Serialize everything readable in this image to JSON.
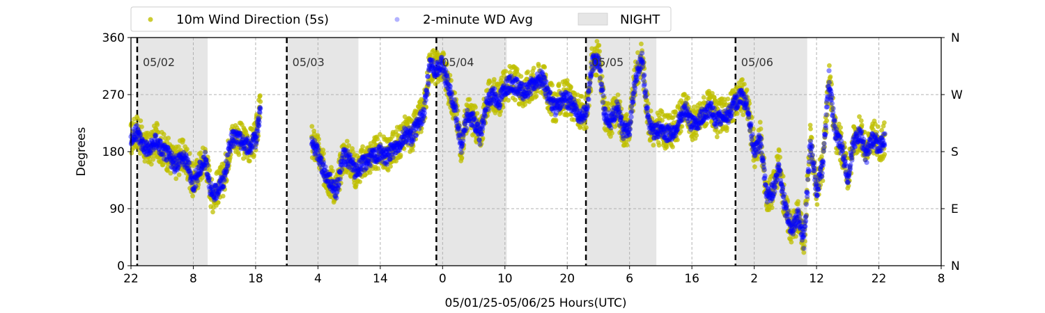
{
  "chart_data": {
    "type": "scatter",
    "xlabel": "05/01/25-05/06/25  Hours(UTC)",
    "ylabel": "Degrees",
    "xlim": [
      0,
      130
    ],
    "ylim": [
      0,
      360
    ],
    "x_ticks": [
      {
        "x": 0,
        "label": "22"
      },
      {
        "x": 10,
        "label": "8"
      },
      {
        "x": 20,
        "label": "18"
      },
      {
        "x": 30,
        "label": "4"
      },
      {
        "x": 40,
        "label": "14"
      },
      {
        "x": 50,
        "label": "0"
      },
      {
        "x": 60,
        "label": "10"
      },
      {
        "x": 70,
        "label": "20"
      },
      {
        "x": 80,
        "label": "6"
      },
      {
        "x": 90,
        "label": "16"
      },
      {
        "x": 100,
        "label": "2"
      },
      {
        "x": 110,
        "label": "12"
      },
      {
        "x": 120,
        "label": "22"
      },
      {
        "x": 130,
        "label": "8"
      }
    ],
    "y_ticks_left": [
      "0",
      "90",
      "180",
      "270",
      "360"
    ],
    "y_ticks_right": [
      "N",
      "E",
      "S",
      "W",
      "N"
    ],
    "grid": true,
    "legend": {
      "placement": "top",
      "entries": [
        {
          "label": "10m Wind Direction (5s)",
          "color": "#bfbf00",
          "marker": "circle"
        },
        {
          "label": "2-minute WD Avg",
          "color": "#0000ff",
          "marker": "circle-faint"
        },
        {
          "label": "NIGHT",
          "color": "#e6e6e6",
          "marker": "rect"
        }
      ]
    },
    "night_spans": [
      [
        1,
        12.3
      ],
      [
        25,
        36.5
      ],
      [
        49,
        60.3
      ],
      [
        73,
        84.3
      ],
      [
        97,
        108.5
      ]
    ],
    "day_boundaries": [
      1,
      25,
      49,
      73,
      97
    ],
    "day_labels": [
      "05/02",
      "05/03",
      "05/04",
      "05/05",
      "05/06"
    ],
    "gaps": [
      [
        20.8,
        29
      ]
    ],
    "colors": {
      "wd_5s": "#bfbf00",
      "wd_avg": "#0000ff",
      "night": "#e6e6e6"
    },
    "series": [
      {
        "name": "10m Wind Direction (5s)",
        "x": [
          0,
          1,
          2,
          3,
          4,
          5,
          6,
          7,
          8,
          9,
          10,
          11,
          12,
          13,
          14,
          15,
          16,
          17,
          18,
          19,
          20,
          20.8,
          29,
          30,
          31,
          32,
          33,
          34,
          35,
          36,
          37,
          38,
          39,
          40,
          41,
          42,
          43,
          44,
          45,
          46,
          47,
          48,
          49,
          50,
          51,
          52,
          53,
          54,
          55,
          56,
          57,
          58,
          59,
          60,
          61,
          62,
          63,
          64,
          65,
          66,
          67,
          68,
          69,
          70,
          71,
          72,
          73,
          74,
          75,
          76,
          77,
          78,
          79,
          80,
          81,
          82,
          83,
          84,
          85,
          86,
          87,
          88,
          89,
          90,
          91,
          92,
          93,
          94,
          95,
          96,
          97,
          98,
          99,
          100,
          101,
          102,
          103,
          104,
          105,
          106,
          107,
          108,
          109,
          110,
          111,
          112,
          113,
          114,
          115,
          116,
          117,
          118,
          119,
          120,
          121
        ],
        "y": [
          200,
          215,
          190,
          180,
          200,
          185,
          175,
          160,
          175,
          165,
          130,
          155,
          170,
          110,
          125,
          140,
          200,
          205,
          195,
          190,
          200,
          255,
          195,
          180,
          150,
          135,
          120,
          175,
          170,
          150,
          160,
          170,
          175,
          180,
          175,
          185,
          195,
          210,
          205,
          225,
          245,
          320,
          310,
          320,
          280,
          250,
          190,
          240,
          230,
          205,
          255,
          275,
          260,
          285,
          290,
          285,
          275,
          285,
          290,
          300,
          270,
          250,
          265,
          265,
          255,
          240,
          240,
          320,
          330,
          240,
          230,
          250,
          215,
          220,
          300,
          330,
          230,
          210,
          220,
          210,
          215,
          230,
          250,
          225,
          230,
          245,
          250,
          230,
          240,
          240,
          260,
          270,
          250,
          180,
          200,
          110,
          120,
          160,
          90,
          60,
          80,
          40,
          200,
          120,
          160,
          300,
          210,
          190,
          140,
          200,
          210,
          175,
          205,
          190,
          200
        ]
      },
      {
        "name": "2-minute WD Avg",
        "x": [
          0,
          1,
          2,
          3,
          4,
          5,
          6,
          7,
          8,
          9,
          10,
          11,
          12,
          13,
          14,
          15,
          16,
          17,
          18,
          19,
          20,
          20.8,
          29,
          30,
          31,
          32,
          33,
          34,
          35,
          36,
          37,
          38,
          39,
          40,
          41,
          42,
          43,
          44,
          45,
          46,
          47,
          48,
          49,
          50,
          51,
          52,
          53,
          54,
          55,
          56,
          57,
          58,
          59,
          60,
          61,
          62,
          63,
          64,
          65,
          66,
          67,
          68,
          69,
          70,
          71,
          72,
          73,
          74,
          75,
          76,
          77,
          78,
          79,
          80,
          81,
          82,
          83,
          84,
          85,
          86,
          87,
          88,
          89,
          90,
          91,
          92,
          93,
          94,
          95,
          96,
          97,
          98,
          99,
          100,
          101,
          102,
          103,
          104,
          105,
          106,
          107,
          108,
          109,
          110,
          111,
          112,
          113,
          114,
          115,
          116,
          117,
          118,
          119,
          120,
          121
        ],
        "y": [
          200,
          210,
          190,
          182,
          198,
          183,
          175,
          158,
          172,
          163,
          128,
          152,
          168,
          108,
          122,
          138,
          198,
          203,
          193,
          188,
          198,
          250,
          192,
          178,
          148,
          133,
          118,
          172,
          168,
          148,
          158,
          168,
          173,
          178,
          172,
          182,
          192,
          208,
          203,
          222,
          242,
          318,
          308,
          318,
          278,
          248,
          188,
          238,
          228,
          203,
          252,
          272,
          258,
          282,
          288,
          282,
          272,
          282,
          288,
          298,
          268,
          248,
          262,
          262,
          252,
          238,
          238,
          318,
          328,
          238,
          228,
          248,
          212,
          218,
          298,
          328,
          228,
          208,
          218,
          208,
          212,
          228,
          248,
          222,
          228,
          242,
          248,
          228,
          238,
          238,
          258,
          268,
          248,
          178,
          198,
          108,
          118,
          158,
          88,
          58,
          78,
          38,
          198,
          118,
          158,
          298,
          208,
          188,
          138,
          198,
          208,
          172,
          202,
          188,
          198
        ]
      }
    ]
  }
}
